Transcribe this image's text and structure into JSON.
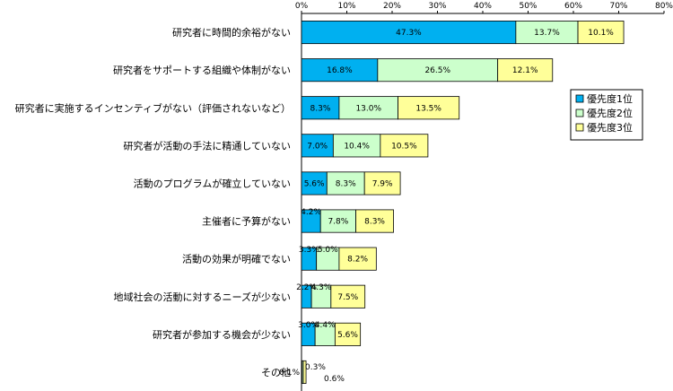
{
  "chart_data": {
    "type": "bar",
    "orientation": "horizontal",
    "stacked": true,
    "categories": [
      "研究者に時間的余裕がない",
      "研究者をサポートする組織や体制がない",
      "研究者に実施するインセンティブがない（評価されないなど）",
      "研究者が活動の手法に精通していない",
      "活動のプログラムが確立していない",
      "主催者に予算がない",
      "活動の効果が明確でない",
      "地域社会の活動に対するニーズが少ない",
      "研究者が参加する機会が少ない",
      "その他"
    ],
    "series": [
      {
        "name": "優先度1位",
        "color": "#00b0f0",
        "values": [
          47.3,
          16.8,
          8.3,
          7.0,
          5.6,
          4.2,
          3.3,
          2.2,
          3.0,
          0.1
        ],
        "labels": [
          "47.3%",
          "16.8%",
          "8.3%",
          "7.0%",
          "5.6%",
          "4.2%",
          "3.3%",
          "2.2%",
          "3.0%",
          "0.1%"
        ]
      },
      {
        "name": "優先度2位",
        "color": "#ccffcc",
        "values": [
          13.7,
          26.5,
          13.0,
          10.4,
          8.3,
          7.8,
          5.0,
          4.3,
          4.4,
          0.3
        ],
        "labels": [
          "13.7%",
          "26.5%",
          "13.0%",
          "10.4%",
          "8.3%",
          "7.8%",
          "5.0%",
          "4.3%",
          "4.4%",
          "0.3%"
        ]
      },
      {
        "name": "優先度3位",
        "color": "#ffff99",
        "values": [
          10.1,
          12.1,
          13.5,
          10.5,
          7.9,
          8.3,
          8.2,
          7.5,
          5.6,
          0.6
        ],
        "labels": [
          "10.1%",
          "12.1%",
          "13.5%",
          "10.5%",
          "7.9%",
          "8.3%",
          "8.2%",
          "7.5%",
          "5.6%",
          "0.6%"
        ]
      }
    ],
    "xlim": [
      0,
      80
    ],
    "ticks": [
      0,
      10,
      20,
      30,
      40,
      50,
      60,
      70,
      80
    ],
    "tick_labels": [
      "0%",
      "10%",
      "20%",
      "30%",
      "40%",
      "50%",
      "60%",
      "70%",
      "80%"
    ],
    "legend_position": "right",
    "grid": false,
    "title": "",
    "xlabel": "",
    "ylabel": ""
  }
}
